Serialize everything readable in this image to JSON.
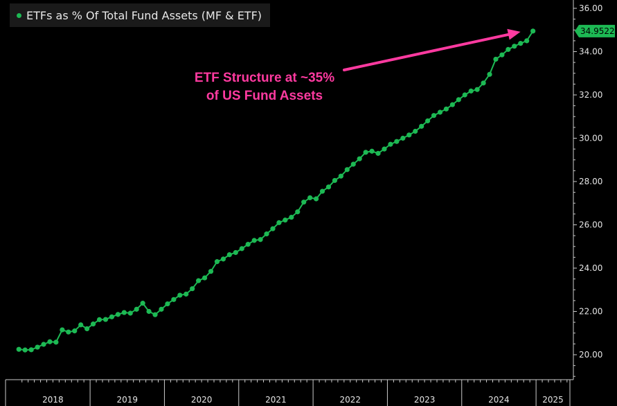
{
  "colors": {
    "background": "#000000",
    "series": "#1db954",
    "annotation": "#ff3aa0",
    "axis": "#cccccc",
    "text": "#e6e6e6"
  },
  "annotation": {
    "line1": "ETF Structure at ~35%",
    "line2": "of US Fund Assets"
  },
  "last_value_label": "34.9522",
  "chart_data": {
    "type": "line",
    "title": "",
    "xlabel": "",
    "ylabel": "",
    "legend_position": "top-left",
    "grid": false,
    "ylim": [
      19.0,
      36.0
    ],
    "yticks": [
      "20.00",
      "22.00",
      "24.00",
      "26.00",
      "28.00",
      "30.00",
      "32.00",
      "34.00",
      "36.00"
    ],
    "xlim": [
      "2017-12-15",
      "2025-06-15"
    ],
    "xtick_labels": [
      "2018",
      "2019",
      "2020",
      "2021",
      "2022",
      "2023",
      "2024",
      "2025"
    ],
    "x_start": "2018-01",
    "x_frequency": "monthly",
    "series": [
      {
        "name": "ETFs as % Of Total Fund Assets (MF & ETF)",
        "values": [
          20.25,
          20.22,
          20.23,
          20.35,
          20.48,
          20.6,
          20.58,
          21.15,
          21.05,
          21.1,
          21.38,
          21.2,
          21.42,
          21.62,
          21.63,
          21.75,
          21.86,
          21.95,
          21.92,
          22.1,
          22.38,
          22.0,
          21.85,
          22.1,
          22.35,
          22.55,
          22.75,
          22.8,
          23.05,
          23.42,
          23.55,
          23.85,
          24.3,
          24.42,
          24.62,
          24.72,
          24.9,
          25.1,
          25.28,
          25.32,
          25.58,
          25.82,
          26.1,
          26.22,
          26.35,
          26.6,
          27.05,
          27.25,
          27.2,
          27.55,
          27.75,
          28.05,
          28.25,
          28.55,
          28.8,
          29.05,
          29.35,
          29.4,
          29.3,
          29.5,
          29.72,
          29.85,
          30.0,
          30.15,
          30.32,
          30.55,
          30.8,
          31.05,
          31.2,
          31.35,
          31.55,
          31.78,
          32.0,
          32.18,
          32.25,
          32.55,
          32.95,
          33.65,
          33.85,
          34.1,
          34.25,
          34.38,
          34.5,
          34.95
        ]
      }
    ]
  }
}
